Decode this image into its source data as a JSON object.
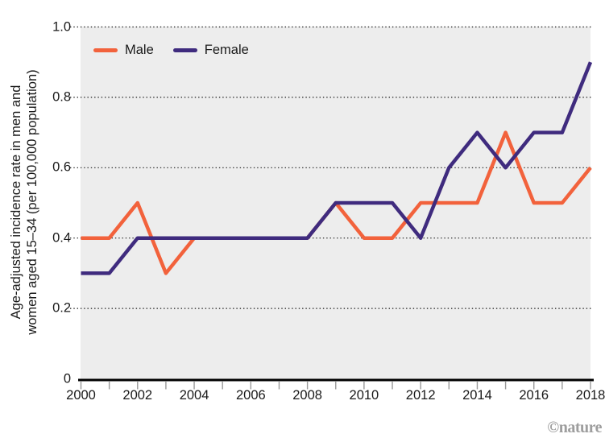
{
  "branding": {
    "credit": "©nature",
    "color": "#9e9e9e"
  },
  "chart_data": {
    "type": "line",
    "title": "",
    "ylabel": "Age-adjusted incidence rate in men and women aged 15–34 (per 100,000 population)",
    "ylabel_lines": [
      "Age-adjusted incidence rate in men and",
      "women aged 15–34 (per 100,000 population)"
    ],
    "xlabel": "",
    "x": [
      2000,
      2001,
      2002,
      2003,
      2004,
      2005,
      2006,
      2007,
      2008,
      2009,
      2010,
      2011,
      2012,
      2013,
      2014,
      2015,
      2016,
      2017,
      2018
    ],
    "series": [
      {
        "name": "Male",
        "color": "#F2623C",
        "values": [
          0.4,
          0.4,
          0.5,
          0.3,
          0.4,
          0.4,
          0.4,
          0.4,
          0.4,
          0.5,
          0.4,
          0.4,
          0.5,
          0.5,
          0.5,
          0.7,
          0.5,
          0.5,
          0.6
        ]
      },
      {
        "name": "Female",
        "color": "#3F2B7E",
        "values": [
          0.3,
          0.3,
          0.4,
          0.4,
          0.4,
          0.4,
          0.4,
          0.4,
          0.4,
          0.5,
          0.5,
          0.5,
          0.4,
          0.6,
          0.7,
          0.6,
          0.7,
          0.7,
          0.9
        ]
      }
    ],
    "xlim": [
      2000,
      2018
    ],
    "ylim": [
      0,
      1.0
    ],
    "xtick_labels": [
      "2000",
      "2002",
      "2004",
      "2006",
      "2008",
      "2010",
      "2012",
      "2014",
      "2016",
      "2018"
    ],
    "ytick_labels": [
      "1.0",
      "0.8",
      "0.6",
      "0.4",
      "0.2",
      "0"
    ],
    "x_minor_ticks": "every year",
    "grid": "horizontal dotted lines at 0.2 intervals",
    "legend_position": "top-left inside plot",
    "plot_bg_color": "#EDEDED",
    "grid_color": "#1a1a1a",
    "axis_color": "#000000",
    "tick_color": "#999999"
  }
}
